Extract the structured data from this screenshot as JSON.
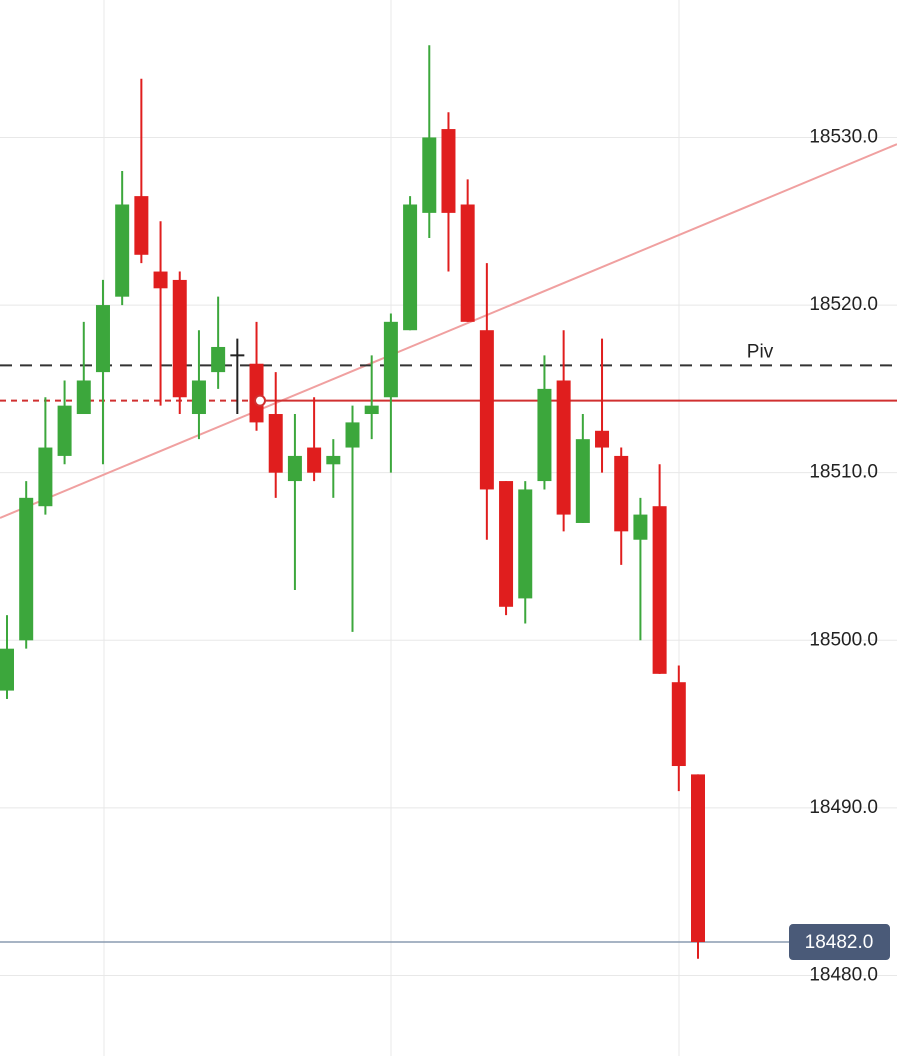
{
  "chart_data": {
    "type": "candlestick",
    "colors": {
      "up": "#3ca73c",
      "down": "#e01e1e",
      "flat": "#222222"
    },
    "series": {
      "open": [
        18497.0,
        18500.0,
        18508.0,
        18511.0,
        18513.5,
        18516.0,
        18520.5,
        18526.5,
        18522.0,
        18521.5,
        18513.5,
        18516.0,
        18517.0,
        18516.5,
        18513.5,
        18509.5,
        18511.5,
        18510.5,
        18511.5,
        18513.5,
        18514.5,
        18518.5,
        18525.5,
        18530.5,
        18526.0,
        18518.5,
        18509.5,
        18502.5,
        18509.5,
        18515.5,
        18507.0,
        18512.5,
        18511.0,
        18506.0,
        18508.0,
        18497.5,
        18492.0
      ],
      "high": [
        18501.5,
        18509.5,
        18514.5,
        18515.5,
        18519.0,
        18521.5,
        18528.0,
        18533.5,
        18525.0,
        18522.0,
        18518.5,
        18520.5,
        18518.0,
        18519.0,
        18516.0,
        18513.5,
        18514.5,
        18512.0,
        18514.0,
        18517.0,
        18519.5,
        18526.5,
        18535.5,
        18531.5,
        18527.5,
        18522.5,
        18509.5,
        18509.5,
        18517.0,
        18518.5,
        18513.5,
        18518.0,
        18511.5,
        18508.5,
        18510.5,
        18498.5,
        18492.0
      ],
      "low": [
        18496.5,
        18499.5,
        18507.5,
        18510.5,
        18513.5,
        18510.5,
        18520.0,
        18522.5,
        18514.0,
        18513.5,
        18512.0,
        18515.0,
        18513.5,
        18512.5,
        18508.5,
        18503.0,
        18509.5,
        18508.5,
        18500.5,
        18512.0,
        18510.0,
        18518.5,
        18524.0,
        18522.0,
        18519.0,
        18506.0,
        18501.5,
        18501.0,
        18509.0,
        18506.5,
        18507.0,
        18510.0,
        18504.5,
        18500.0,
        18498.0,
        18491.0,
        18481.0
      ],
      "close": [
        18499.5,
        18508.5,
        18511.5,
        18514.0,
        18515.5,
        18520.0,
        18526.0,
        18523.0,
        18521.0,
        18514.5,
        18515.5,
        18517.5,
        18517.0,
        18513.0,
        18510.0,
        18511.0,
        18510.0,
        18511.0,
        18513.0,
        18514.0,
        18519.0,
        18526.0,
        18530.0,
        18525.5,
        18519.0,
        18509.0,
        18502.0,
        18509.0,
        18515.0,
        18507.5,
        18512.0,
        18511.5,
        18506.5,
        18507.5,
        18498.0,
        18492.5,
        18482.0
      ]
    },
    "ylim": [
      18475.2,
      18538.2
    ],
    "yticks": [
      {
        "value": 18480,
        "label": "18480.0"
      },
      {
        "value": 18490,
        "label": "18490.0"
      },
      {
        "value": 18500,
        "label": "18500.0"
      },
      {
        "value": 18510,
        "label": "18510.0"
      },
      {
        "value": 18520,
        "label": "18520.0"
      },
      {
        "value": 18530,
        "label": "18530.0"
      }
    ],
    "grid": true,
    "pivot": {
      "value": 18516.4,
      "label": "Piv",
      "color": "#333333"
    },
    "level": {
      "value": 18514.3,
      "color": "#d03030"
    },
    "trendline": {
      "start": 18507.3,
      "end": 18529.6,
      "color": "#f0a0a0"
    },
    "last_price": {
      "value": 18482,
      "label": "18482.0",
      "color": "#4a5a78"
    }
  }
}
